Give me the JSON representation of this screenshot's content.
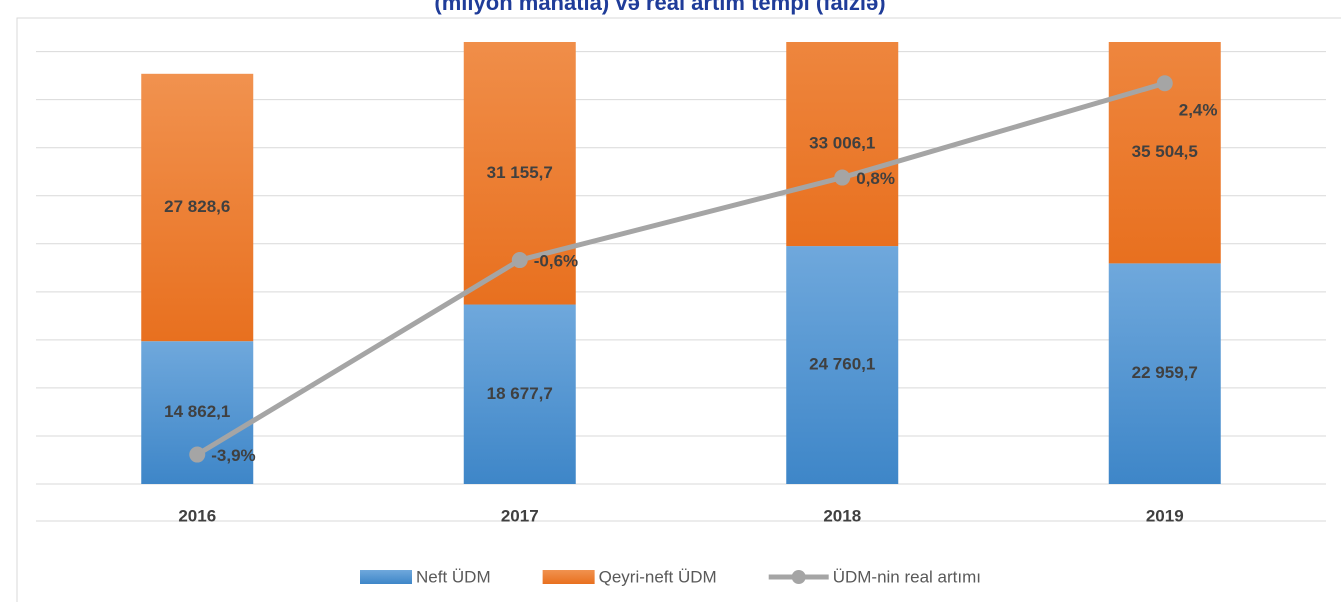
{
  "chart_data": {
    "type": "bar",
    "title": "(milyon manatla) və real artım tempi (faizlə)",
    "categories": [
      "2016",
      "2017",
      "2018",
      "2019"
    ],
    "stacked": true,
    "series": [
      {
        "name": "Neft ÜDM",
        "color": "#5b9bd5",
        "values": [
          14862.1,
          18677.7,
          24760.1,
          22959.7
        ],
        "value_labels": [
          "14 862,1",
          "18 677,7",
          "24 760,1",
          "22 959,7"
        ]
      },
      {
        "name": "Qeyri-neft ÜDM",
        "color": "#ed7d31",
        "values": [
          27828.6,
          31155.7,
          33006.1,
          35504.5
        ],
        "value_labels": [
          "27 828,6",
          "31 155,7",
          "33 006,1",
          "35 504,5"
        ]
      },
      {
        "name": "ÜDM-nin real artımı",
        "type": "line",
        "axis": "y2",
        "color": "#a5a5a5",
        "values": [
          -3.9,
          -0.6,
          0.8,
          2.4
        ],
        "value_labels": [
          "-3,9%",
          "-0,6%",
          "0,8%",
          "2,4%"
        ]
      }
    ],
    "ylim": [
      0,
      46000
    ],
    "yticks": [
      0,
      5000,
      10000,
      15000,
      20000,
      25000,
      30000,
      35000,
      40000,
      45000
    ],
    "y2lim": [
      -4.4,
      3.1
    ],
    "grid": true,
    "legend": "bottom"
  }
}
